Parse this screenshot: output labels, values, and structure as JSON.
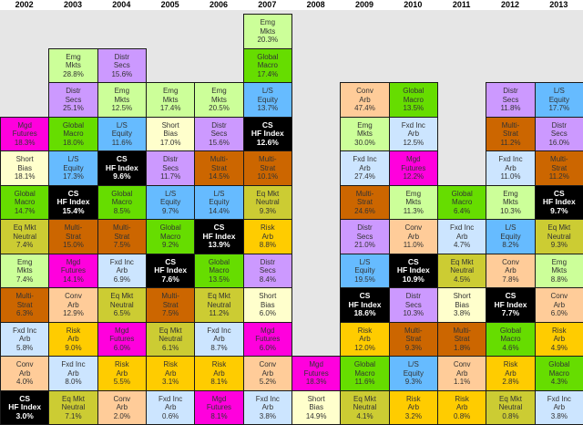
{
  "chart_data": {
    "type": "table",
    "years": [
      "2002",
      "2003",
      "2004",
      "2005",
      "2006",
      "2007",
      "2008",
      "2009",
      "2010",
      "2011",
      "2012",
      "2013"
    ],
    "highlight": "CS HF Index",
    "strategies": {
      "Emg Mkts": {
        "label": [
          "Emg",
          "Mkts"
        ],
        "color": "#ccff99"
      },
      "Global Macro": {
        "label": [
          "Global",
          "Macro"
        ],
        "color": "#66dd00"
      },
      "Distr Secs": {
        "label": [
          "Distr",
          "Secs"
        ],
        "color": "#cc99ff"
      },
      "L/S Equity": {
        "label": [
          "L/S",
          "Equity"
        ],
        "color": "#66bbff"
      },
      "Conv Arb": {
        "label": [
          "Conv",
          "Arb"
        ],
        "color": "#ffcc99"
      },
      "Mgd Futures": {
        "label": [
          "Mgd",
          "Futures"
        ],
        "color": "#ff00dd"
      },
      "Fxd Inc Arb": {
        "label": [
          "Fxd Inc",
          "Arb"
        ],
        "color": "#cce5ff"
      },
      "Short Bias": {
        "label": [
          "Short",
          "Bias"
        ],
        "color": "#ffffcc"
      },
      "Multi-Strat": {
        "label": [
          "Multi-",
          "Strat"
        ],
        "color": "#cc6600"
      },
      "Eq Mkt Neutral": {
        "label": [
          "Eq Mkt",
          "Neutral"
        ],
        "color": "#cccc33"
      },
      "Risk Arb": {
        "label": [
          "Risk",
          "Arb"
        ],
        "color": "#ffcc00"
      },
      "CS HF Index": {
        "label": [
          "CS",
          "HF Index"
        ],
        "color": "#000000"
      }
    },
    "columns": [
      [
        [
          "Mgd Futures",
          "18.3%"
        ],
        [
          "Short Bias",
          "18.1%"
        ],
        [
          "Global Macro",
          "14.7%"
        ],
        [
          "Eq Mkt Neutral",
          "7.4%"
        ],
        [
          "Emg Mkts",
          "7.4%"
        ],
        [
          "Multi-Strat",
          "6.3%"
        ],
        [
          "Fxd Inc Arb",
          "5.8%"
        ],
        [
          "Conv Arb",
          "4.0%"
        ],
        [
          "CS HF Index",
          "3.0%"
        ]
      ],
      [
        [
          "Emg Mkts",
          "28.8%"
        ],
        [
          "Distr Secs",
          "25.1%"
        ],
        [
          "Global Macro",
          "18.0%"
        ],
        [
          "L/S Equity",
          "17.3%"
        ],
        [
          "CS HF Index",
          "15.4%"
        ],
        [
          "Multi-Strat",
          "15.0%"
        ],
        [
          "Mgd Futures",
          "14.1%"
        ],
        [
          "Conv Arb",
          "12.9%"
        ],
        [
          "Risk Arb",
          "9.0%"
        ],
        [
          "Fxd Inc Arb",
          "8.0%"
        ],
        [
          "Eq Mkt Neutral",
          "7.1%"
        ]
      ],
      [
        [
          "Distr Secs",
          "15.6%"
        ],
        [
          "Emg Mkts",
          "12.5%"
        ],
        [
          "L/S Equity",
          "11.6%"
        ],
        [
          "CS HF Index",
          "9.6%"
        ],
        [
          "Global Macro",
          "8.5%"
        ],
        [
          "Multi-Strat",
          "7.5%"
        ],
        [
          "Fxd Inc Arb",
          "6.9%"
        ],
        [
          "Eq Mkt Neutral",
          "6.5%"
        ],
        [
          "Mgd Futures",
          "6.0%"
        ],
        [
          "Risk Arb",
          "5.5%"
        ],
        [
          "Conv Arb",
          "2.0%"
        ]
      ],
      [
        [
          "Emg Mkts",
          "17.4%"
        ],
        [
          "Short Bias",
          "17.0%"
        ],
        [
          "Distr Secs",
          "11.7%"
        ],
        [
          "L/S Equity",
          "9.7%"
        ],
        [
          "Global Macro",
          "9.2%"
        ],
        [
          "CS HF Index",
          "7.6%"
        ],
        [
          "Multi-Strat",
          "7.5%"
        ],
        [
          "Eq Mkt Neutral",
          "6.1%"
        ],
        [
          "Risk Arb",
          "3.1%"
        ],
        [
          "Fxd Inc Arb",
          "0.6%"
        ]
      ],
      [
        [
          "Emg Mkts",
          "20.5%"
        ],
        [
          "Distr Secs",
          "15.6%"
        ],
        [
          "Multi-Strat",
          "14.5%"
        ],
        [
          "L/S Equity",
          "14.4%"
        ],
        [
          "CS HF Index",
          "13.9%"
        ],
        [
          "Global Macro",
          "13.5%"
        ],
        [
          "Eq Mkt Neutral",
          "11.2%"
        ],
        [
          "Fxd Inc Arb",
          "8.7%"
        ],
        [
          "Risk Arb",
          "8.1%"
        ],
        [
          "Mgd Futures",
          "8.1%"
        ]
      ],
      [
        [
          "Emg Mkts",
          "20.3%"
        ],
        [
          "Global Macro",
          "17.4%"
        ],
        [
          "L/S Equity",
          "13.7%"
        ],
        [
          "CS HF Index",
          "12.6%"
        ],
        [
          "Multi-Strat",
          "10.1%"
        ],
        [
          "Eq Mkt Neutral",
          "9.3%"
        ],
        [
          "Risk Arb",
          "8.8%"
        ],
        [
          "Distr Secs",
          "8.4%"
        ],
        [
          "Short Bias",
          "6.0%"
        ],
        [
          "Mgd Futures",
          "6.0%"
        ],
        [
          "Conv Arb",
          "5.2%"
        ],
        [
          "Fxd Inc Arb",
          "3.8%"
        ]
      ],
      [
        [
          "Mgd Futures",
          "18.3%"
        ],
        [
          "Short Bias",
          "14.9%"
        ]
      ],
      [
        [
          "Conv Arb",
          "47.4%"
        ],
        [
          "Emg Mkts",
          "30.0%"
        ],
        [
          "Fxd Inc Arb",
          "27.4%"
        ],
        [
          "Multi-Strat",
          "24.6%"
        ],
        [
          "Distr Secs",
          "21.0%"
        ],
        [
          "L/S Equity",
          "19.5%"
        ],
        [
          "CS HF Index",
          "18.6%"
        ],
        [
          "Risk Arb",
          "12.0%"
        ],
        [
          "Global Macro",
          "11.6%"
        ],
        [
          "Eq Mkt Neutral",
          "4.1%"
        ]
      ],
      [
        [
          "Global Macro",
          "13.5%"
        ],
        [
          "Fxd Inc Arb",
          "12.5%"
        ],
        [
          "Mgd Futures",
          "12.2%"
        ],
        [
          "Emg Mkts",
          "11.3%"
        ],
        [
          "Conv Arb",
          "11.0%"
        ],
        [
          "CS HF Index",
          "10.9%"
        ],
        [
          "Distr Secs",
          "10.3%"
        ],
        [
          "Multi-Strat",
          "9.3%"
        ],
        [
          "L/S Equity",
          "9.3%"
        ],
        [
          "Risk Arb",
          "3.2%"
        ]
      ],
      [
        [
          "Global Macro",
          "6.4%"
        ],
        [
          "Fxd Inc Arb",
          "4.7%"
        ],
        [
          "Eq Mkt Neutral",
          "4.5%"
        ],
        [
          "Short Bias",
          "3.8%"
        ],
        [
          "Multi-Strat",
          "1.8%"
        ],
        [
          "Conv Arb",
          "1.1%"
        ],
        [
          "Risk Arb",
          "0.8%"
        ]
      ],
      [
        [
          "Distr Secs",
          "11.8%"
        ],
        [
          "Multi-Strat",
          "11.2%"
        ],
        [
          "Fxd Inc Arb",
          "11.0%"
        ],
        [
          "Emg Mkts",
          "10.3%"
        ],
        [
          "L/S Equity",
          "8.2%"
        ],
        [
          "Conv Arb",
          "7.8%"
        ],
        [
          "CS HF Index",
          "7.7%"
        ],
        [
          "Global Macro",
          "4.6%"
        ],
        [
          "Risk Arb",
          "2.8%"
        ],
        [
          "Eq Mkt Neutral",
          "0.8%"
        ]
      ],
      [
        [
          "L/S Equity",
          "17.7%"
        ],
        [
          "Distr Secs",
          "16.0%"
        ],
        [
          "Multi-Strat",
          "11.2%"
        ],
        [
          "CS HF Index",
          "9.7%"
        ],
        [
          "Eq Mkt Neutral",
          "9.3%"
        ],
        [
          "Emg Mkts",
          "8.8%"
        ],
        [
          "Conv Arb",
          "6.0%"
        ],
        [
          "Risk Arb",
          "4.9%"
        ],
        [
          "Global Macro",
          "4.3%"
        ],
        [
          "Fxd Inc Arb",
          "3.8%"
        ]
      ]
    ]
  }
}
